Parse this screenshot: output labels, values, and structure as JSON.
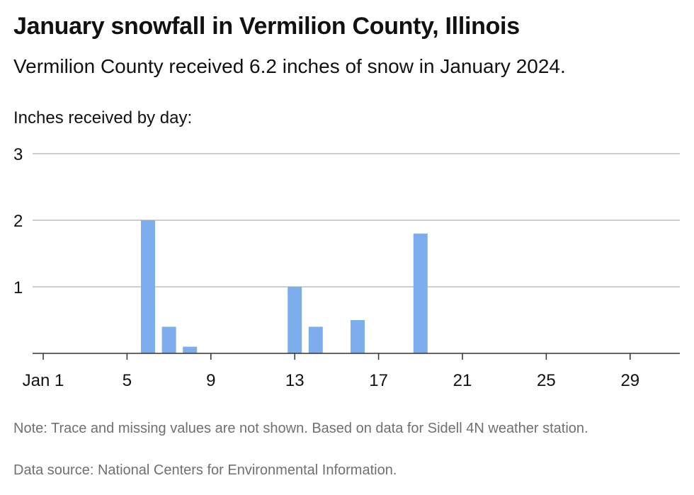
{
  "header": {
    "title": "January snowfall in Vermilion County, Illinois",
    "subtitle": "Vermilion County received 6.2 inches of snow in January 2024.",
    "axis_caption": "Inches received by day:"
  },
  "footer": {
    "note": "Note: Trace and missing values are not shown. Based on data for Sidell 4N weather station.",
    "source": "Data source: National Centers for Environmental Information."
  },
  "colors": {
    "bar": "#7eaded",
    "grid": "#bdbdbd",
    "axis": "#333333"
  },
  "chart_data": {
    "type": "bar",
    "title": "January snowfall in Vermilion County, Illinois",
    "ylabel": "Inches received by day:",
    "xlabel": "",
    "xlim": [
      1,
      31
    ],
    "ylim": [
      0,
      3
    ],
    "y_ticks": [
      1,
      2,
      3
    ],
    "x_ticks": [
      {
        "value": 1,
        "label": "Jan 1"
      },
      {
        "value": 5,
        "label": "5"
      },
      {
        "value": 9,
        "label": "9"
      },
      {
        "value": 13,
        "label": "13"
      },
      {
        "value": 17,
        "label": "17"
      },
      {
        "value": 21,
        "label": "21"
      },
      {
        "value": 25,
        "label": "25"
      },
      {
        "value": 29,
        "label": "29"
      }
    ],
    "grid": true,
    "legend": "none",
    "points": [
      {
        "day": 6,
        "inches": 2.0
      },
      {
        "day": 7,
        "inches": 0.4
      },
      {
        "day": 8,
        "inches": 0.1
      },
      {
        "day": 13,
        "inches": 1.0
      },
      {
        "day": 14,
        "inches": 0.4
      },
      {
        "day": 16,
        "inches": 0.5
      },
      {
        "day": 19,
        "inches": 1.8
      }
    ]
  }
}
